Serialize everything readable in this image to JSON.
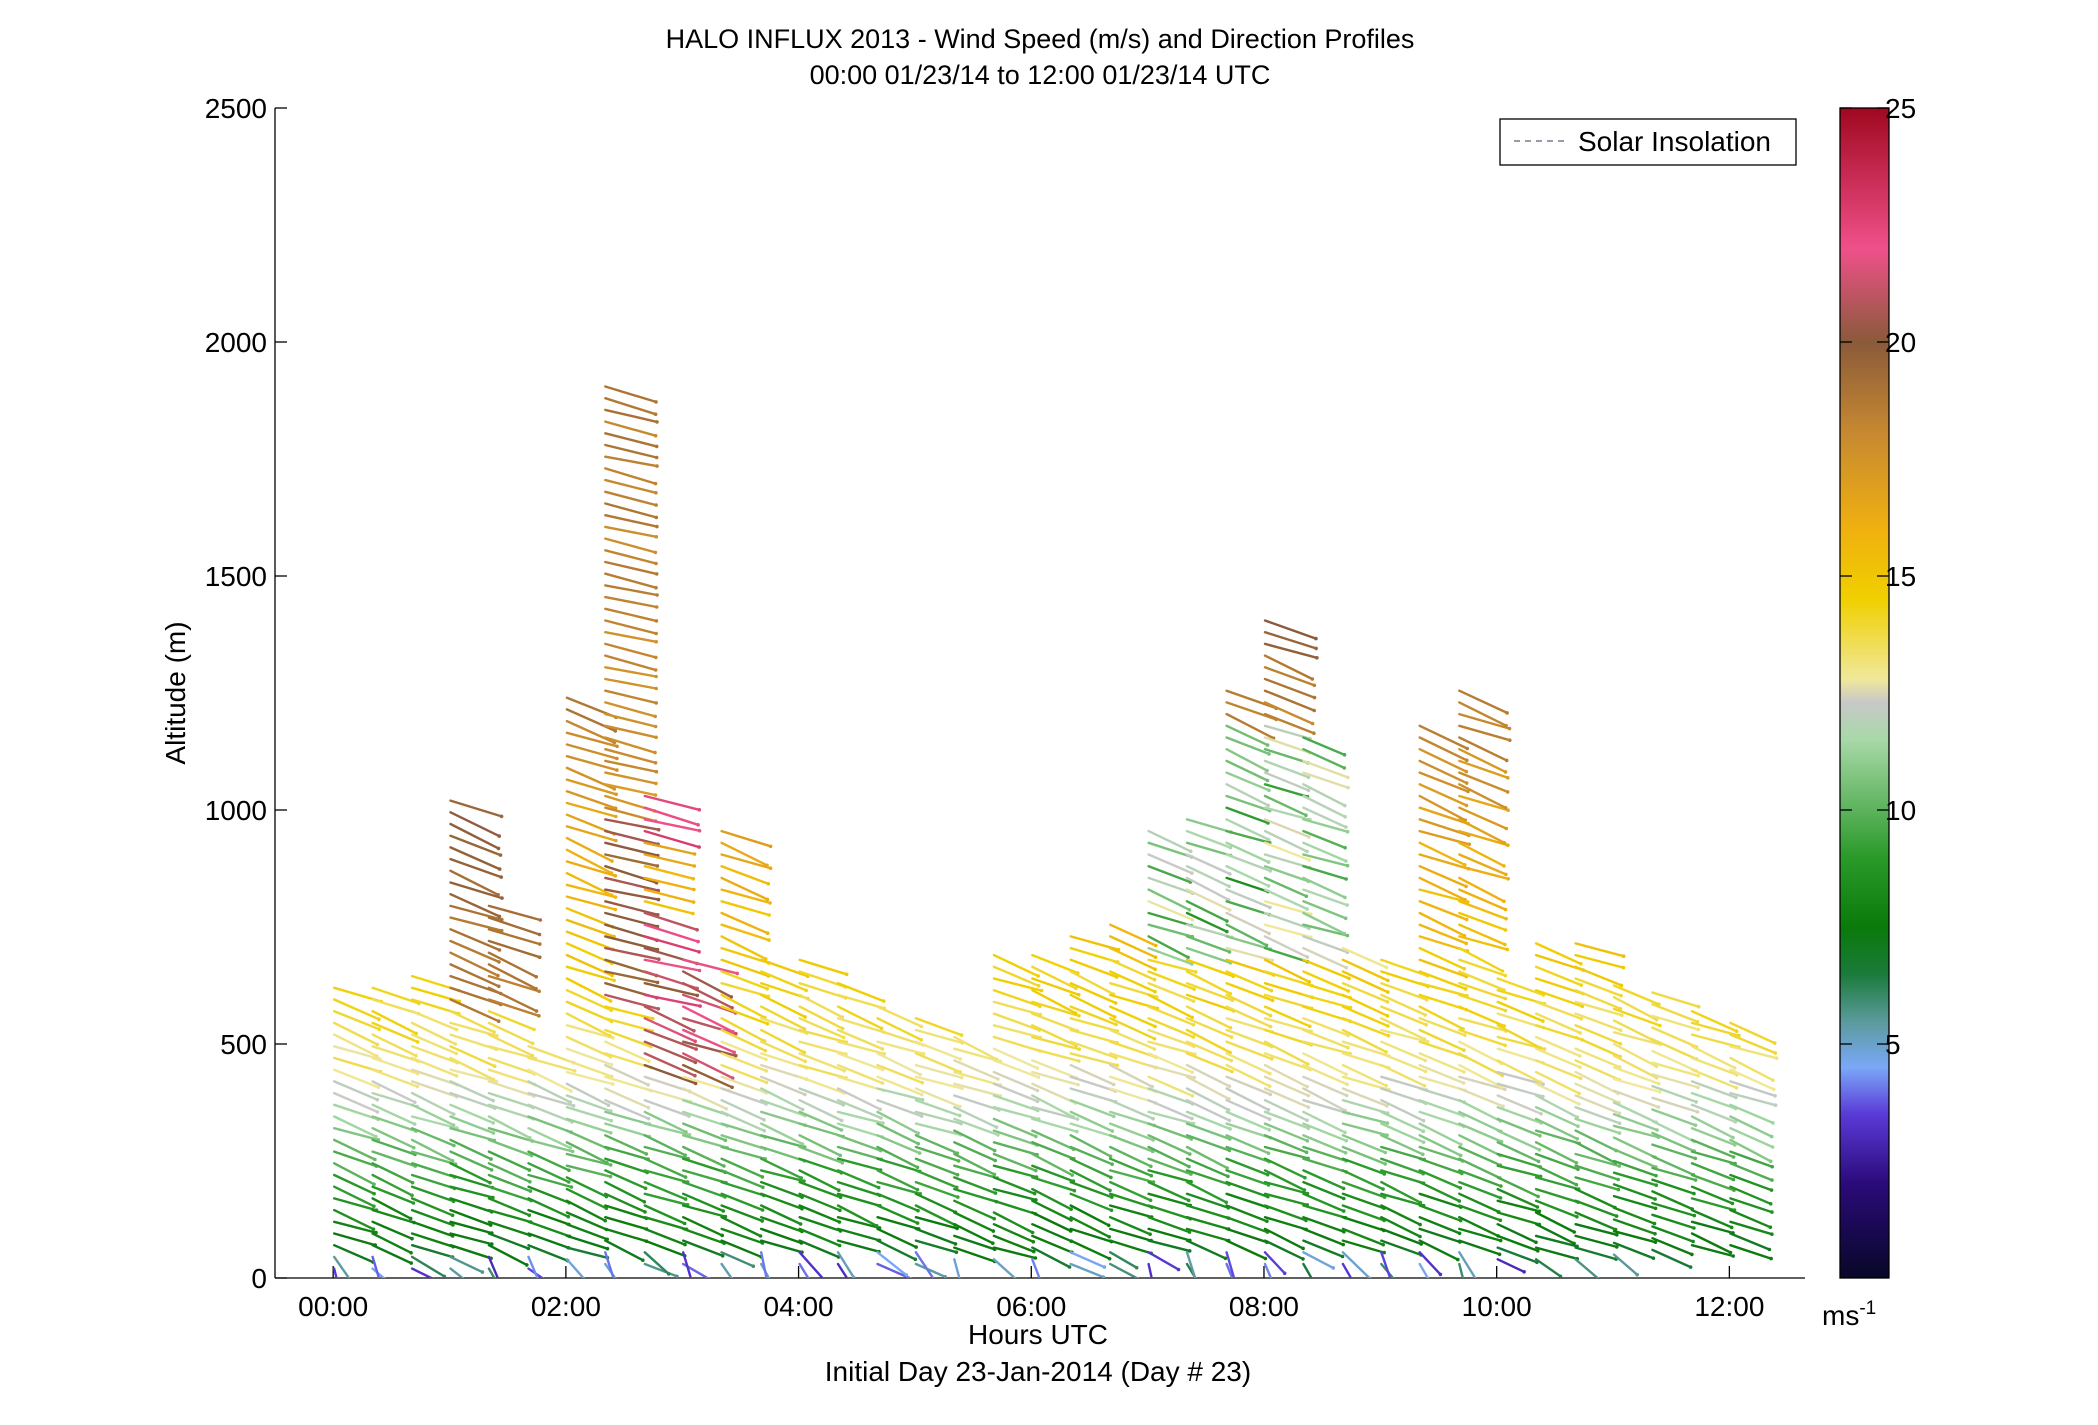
{
  "chart_data": {
    "type": "wind-barb-profile",
    "title": "HALO INFLUX 2013 - Wind Speed (m/s) and Direction Profiles",
    "subtitle": "00:00 01/23/14 to 12:00 01/23/14  UTC",
    "xlabel": "Hours UTC",
    "xlabel2": "Initial Day 23-Jan-2014 (Day # 23)",
    "ylabel": "Altitude (m)",
    "xlim": [
      -0.5,
      12.65
    ],
    "ylim": [
      0,
      2500
    ],
    "xticks": [
      0,
      2,
      4,
      6,
      8,
      10,
      12
    ],
    "xtick_labels": [
      "00:00",
      "02:00",
      "04:00",
      "06:00",
      "08:00",
      "10:00",
      "12:00"
    ],
    "yticks": [
      0,
      500,
      1000,
      1500,
      2000,
      2500
    ],
    "ytick_labels": [
      "0",
      "500",
      "1000",
      "1500",
      "2000",
      "2500"
    ],
    "legend": {
      "label": "Solar Insolation",
      "position": "top-right",
      "line_style": "dashed",
      "color": "#9a9aa8"
    },
    "colorbar": {
      "range": [
        0,
        25
      ],
      "ticks": [
        5,
        10,
        15,
        20,
        25
      ],
      "tick_labels": [
        "5",
        "10",
        "15",
        "20",
        "25"
      ],
      "unit_label": "ms",
      "unit_exponent": "-1",
      "stops": [
        [
          0.0,
          "#080828"
        ],
        [
          2.0,
          "#2a0a78"
        ],
        [
          3.5,
          "#5a3ad8"
        ],
        [
          4.5,
          "#7aa8f8"
        ],
        [
          5.5,
          "#5a9a9a"
        ],
        [
          6.5,
          "#1a7a3a"
        ],
        [
          7.5,
          "#0a7a0a"
        ],
        [
          9.0,
          "#2a9a2a"
        ],
        [
          11.5,
          "#a8d8a8"
        ],
        [
          12.3,
          "#c8c8c8"
        ],
        [
          12.8,
          "#f0e89a"
        ],
        [
          14.5,
          "#f0d000"
        ],
        [
          16.0,
          "#f0b010"
        ],
        [
          18.0,
          "#c88a30"
        ],
        [
          20.0,
          "#8a5a3a"
        ],
        [
          22.0,
          "#f0508a"
        ],
        [
          25.0,
          "#a00820"
        ]
      ]
    },
    "profiles": [
      {
        "t": 0.0,
        "top": 620,
        "base": 0
      },
      {
        "t": 0.33,
        "top": 630,
        "base": 0
      },
      {
        "t": 0.67,
        "top": 650,
        "base": 0
      },
      {
        "t": 1.0,
        "top": 1030,
        "base": 0
      },
      {
        "t": 1.33,
        "top": 800,
        "base": 0
      },
      {
        "t": 1.67,
        "top": 500,
        "base": 0
      },
      {
        "t": 2.0,
        "top": 1260,
        "base": 40
      },
      {
        "t": 2.33,
        "top": 1920,
        "base": 30
      },
      {
        "t": 2.67,
        "top": 1040,
        "base": 30
      },
      {
        "t": 3.0,
        "top": 680,
        "base": 30
      },
      {
        "t": 3.33,
        "top": 970,
        "base": 30
      },
      {
        "t": 3.67,
        "top": 690,
        "base": 30
      },
      {
        "t": 4.0,
        "top": 690,
        "base": 30
      },
      {
        "t": 4.33,
        "top": 650,
        "base": 30
      },
      {
        "t": 4.67,
        "top": 600,
        "base": 30
      },
      {
        "t": 5.0,
        "top": 560,
        "base": 30
      },
      {
        "t": 5.33,
        "top": 520,
        "base": 40
      },
      {
        "t": 5.67,
        "top": 700,
        "base": 40
      },
      {
        "t": 6.0,
        "top": 700,
        "base": 40
      },
      {
        "t": 6.33,
        "top": 730,
        "base": 30
      },
      {
        "t": 6.67,
        "top": 760,
        "base": 30
      },
      {
        "t": 7.0,
        "top": 960,
        "base": 30
      },
      {
        "t": 7.33,
        "top": 1000,
        "base": 30
      },
      {
        "t": 7.67,
        "top": 1270,
        "base": 30
      },
      {
        "t": 8.0,
        "top": 1420,
        "base": 30
      },
      {
        "t": 8.33,
        "top": 1160,
        "base": 30
      },
      {
        "t": 8.67,
        "top": 720,
        "base": 30
      },
      {
        "t": 9.0,
        "top": 680,
        "base": 30
      },
      {
        "t": 9.33,
        "top": 1190,
        "base": 30
      },
      {
        "t": 9.67,
        "top": 1260,
        "base": 30
      },
      {
        "t": 10.0,
        "top": 650,
        "base": 40
      },
      {
        "t": 10.33,
        "top": 720,
        "base": 40
      },
      {
        "t": 10.67,
        "top": 720,
        "base": 40
      },
      {
        "t": 11.0,
        "top": 640,
        "base": 50
      },
      {
        "t": 11.33,
        "top": 610,
        "base": 60
      },
      {
        "t": 11.67,
        "top": 570,
        "base": 70
      },
      {
        "t": 12.0,
        "top": 560,
        "base": 70
      }
    ]
  }
}
